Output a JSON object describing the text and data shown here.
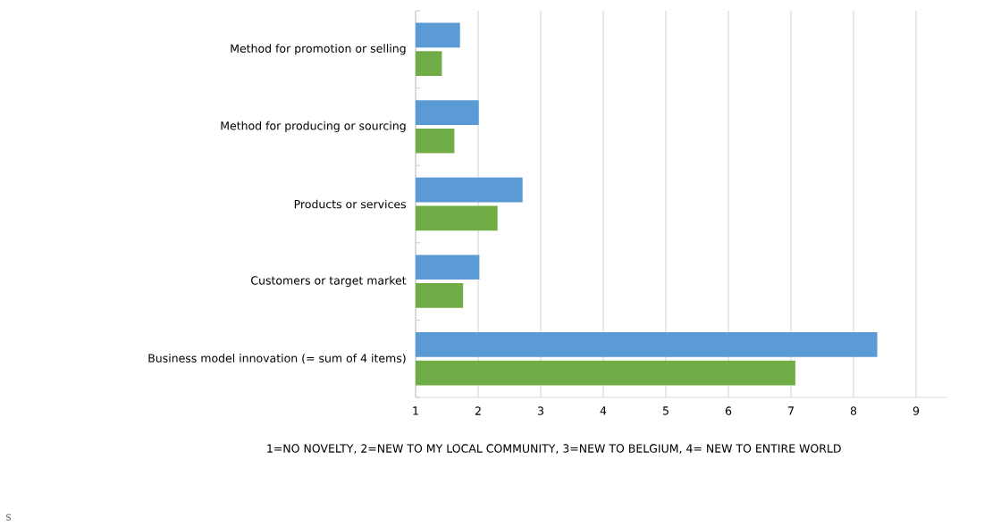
{
  "chart_data": {
    "type": "bar",
    "orientation": "horizontal",
    "categories": [
      "Method for promotion or selling",
      "Method for producing or sourcing",
      "Products or services",
      "Customers or target market",
      "Business model innovation (= sum of 4 items)"
    ],
    "series": [
      {
        "color": "#5b9bd5",
        "values": [
          1.71,
          2.01,
          2.71,
          2.02,
          8.38
        ]
      },
      {
        "color": "#70ad47",
        "values": [
          1.42,
          1.62,
          2.31,
          1.76,
          7.07
        ]
      }
    ],
    "xlim": [
      1,
      9.5
    ],
    "xticks": [
      1,
      2,
      3,
      4,
      5,
      6,
      7,
      8,
      9
    ],
    "xlabel": "1=NO NOVELTY, 2=NEW TO MY LOCAL COMMUNITY, 3=NEW TO BELGIUM, 4= NEW TO ENTIRE WORLD",
    "grid": "x",
    "annotations": [
      "s"
    ]
  }
}
